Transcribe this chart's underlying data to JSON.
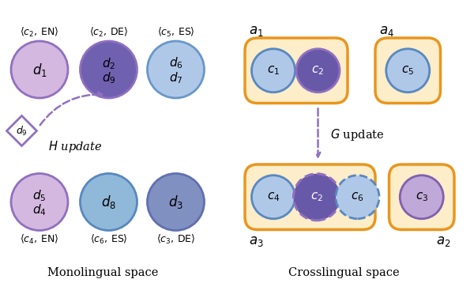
{
  "bg_color": "#ffffff",
  "arrow_color": "#8b7cc8",
  "orange_box_face": "#fdedc8",
  "orange_box_edge": "#e8961e",
  "purple_light_face": "#d4b8e0",
  "purple_light_edge": "#9070c0",
  "purple_dark_face": "#7060b0",
  "purple_dark_edge": "#9070c0",
  "blue_light_face": "#b0c8e8",
  "blue_light_edge": "#6898c8",
  "blue_mid_face": "#8090c0",
  "blue_mid_edge": "#6070b0",
  "blue_teal_face": "#90b8d8",
  "blue_teal_edge": "#5888c0",
  "purple_c2_face": "#6858a8",
  "purple_c2_edge": "#9878c8",
  "purple_c3_face": "#c0a8d8",
  "purple_c3_edge": "#8060b0",
  "dashed_purple": "#9070c0",
  "title_mono": "Monolingual space",
  "title_cross": "Crosslingual space"
}
